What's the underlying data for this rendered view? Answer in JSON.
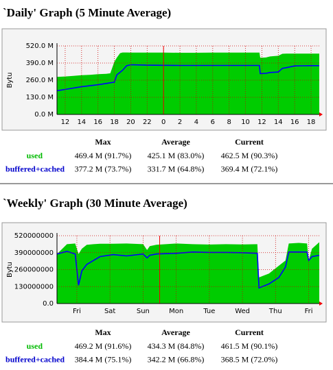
{
  "chart_data": [
    {
      "type": "area",
      "title": "`Daily' Graph (5 Minute Average)",
      "y_label": "Bytu",
      "x": [
        11,
        12,
        13,
        14,
        15,
        16,
        17,
        17.5,
        18,
        18.3,
        18.7,
        19,
        19.5,
        20,
        22,
        24,
        26,
        28,
        30,
        32,
        34,
        35.7,
        35.8,
        36.5,
        37,
        38,
        38.5,
        39,
        40,
        41,
        42,
        43
      ],
      "series": [
        {
          "name": "used",
          "color": "#00cc00",
          "style": "area",
          "values": [
            285,
            288,
            292,
            298,
            300,
            305,
            308,
            312,
            400,
            430,
            465,
            470,
            470,
            469,
            469,
            469,
            468,
            468,
            469,
            469,
            469,
            469,
            430,
            432,
            440,
            445,
            460,
            462,
            462,
            462,
            462,
            462
          ]
        },
        {
          "name": "buffered+cached",
          "color": "#0000ff",
          "style": "line",
          "values": [
            180,
            190,
            200,
            210,
            218,
            225,
            235,
            240,
            245,
            300,
            320,
            335,
            370,
            377,
            374,
            373,
            372,
            372,
            372,
            372,
            372,
            372,
            310,
            312,
            318,
            322,
            350,
            355,
            368,
            369,
            370,
            370
          ]
        }
      ],
      "xlim": [
        11,
        43
      ],
      "xticks": [
        {
          "value": 12,
          "label": "12"
        },
        {
          "value": 14,
          "label": "14"
        },
        {
          "value": 16,
          "label": "16"
        },
        {
          "value": 18,
          "label": "18"
        },
        {
          "value": 20,
          "label": "20"
        },
        {
          "value": 22,
          "label": "22"
        },
        {
          "value": 24,
          "label": "0"
        },
        {
          "value": 26,
          "label": "2"
        },
        {
          "value": 28,
          "label": "4"
        },
        {
          "value": 30,
          "label": "6"
        },
        {
          "value": 32,
          "label": "8"
        },
        {
          "value": 34,
          "label": "10"
        },
        {
          "value": 36,
          "label": "12"
        },
        {
          "value": 38,
          "label": "14"
        },
        {
          "value": 40,
          "label": "16"
        },
        {
          "value": 42,
          "label": "18"
        }
      ],
      "marker_x": 24,
      "ylim": [
        0,
        520
      ],
      "yticks": [
        {
          "value": 0,
          "label": "0.0 M"
        },
        {
          "value": 130,
          "label": "130.0 M"
        },
        {
          "value": 260,
          "label": "260.0 M"
        },
        {
          "value": 390,
          "label": "390.0 M"
        },
        {
          "value": 520,
          "label": "520.0 M"
        }
      ],
      "grid": true,
      "stats": {
        "headers": [
          "Max",
          "Average",
          "Current"
        ],
        "rows": [
          [
            "469.4 M (91.7%)",
            "425.1 M (83.0%)",
            "462.5 M (90.3%)"
          ],
          [
            "377.2 M (73.7%)",
            "331.7 M (64.8%)",
            "369.4 M (72.1%)"
          ]
        ]
      }
    },
    {
      "type": "area",
      "title": "`Weekly' Graph (30 Minute Average)",
      "y_label": "Bytu",
      "x": [
        -0.1,
        0.2,
        0.45,
        0.55,
        0.65,
        0.8,
        1.0,
        1.2,
        1.6,
        2.0,
        2.5,
        2.62,
        2.7,
        2.9,
        3.5,
        4.0,
        4.5,
        5.0,
        5.5,
        5.95,
        6.0,
        6.3,
        6.6,
        6.8,
        6.9,
        7.2,
        7.45,
        7.5,
        7.6,
        7.82
      ],
      "series": [
        {
          "name": "used",
          "color": "#00cc00",
          "style": "area",
          "values": [
            380000000,
            455000000,
            460000000,
            380000000,
            420000000,
            450000000,
            455000000,
            458000000,
            458000000,
            460000000,
            455000000,
            410000000,
            440000000,
            450000000,
            460000000,
            455000000,
            452000000,
            455000000,
            453000000,
            455000000,
            200000000,
            230000000,
            290000000,
            330000000,
            460000000,
            465000000,
            460000000,
            330000000,
            420000000,
            470000000
          ]
        },
        {
          "name": "buffered+cached",
          "color": "#0000ff",
          "style": "line",
          "values": [
            380000000,
            400000000,
            380000000,
            140000000,
            250000000,
            300000000,
            330000000,
            360000000,
            375000000,
            365000000,
            380000000,
            350000000,
            370000000,
            380000000,
            385000000,
            395000000,
            392000000,
            392000000,
            390000000,
            385000000,
            120000000,
            150000000,
            200000000,
            280000000,
            395000000,
            395000000,
            395000000,
            330000000,
            360000000,
            370000000
          ]
        }
      ],
      "xlim": [
        -0.1,
        7.82
      ],
      "xticks": [
        {
          "value": 0.5,
          "label": "Fri"
        },
        {
          "value": 1.5,
          "label": "Sat"
        },
        {
          "value": 2.5,
          "label": "Sun"
        },
        {
          "value": 3.5,
          "label": "Mon"
        },
        {
          "value": 4.5,
          "label": "Tue"
        },
        {
          "value": 5.5,
          "label": "Wed"
        },
        {
          "value": 6.5,
          "label": "Thu"
        },
        {
          "value": 7.5,
          "label": "Fri"
        }
      ],
      "marker_x": 3,
      "ylim": [
        0,
        520000000
      ],
      "yticks": [
        {
          "value": 0,
          "label": "0.0"
        },
        130000000,
        260000000,
        390000000,
        520000000
      ],
      "grid": true,
      "stats": {
        "headers": [
          "Max",
          "Average",
          "Current"
        ],
        "rows": [
          [
            "469.2 M (91.6%)",
            "434.3 M (84.8%)",
            "461.5 M (90.1%)"
          ],
          [
            "384.4 M (75.1%)",
            "342.2 M (66.8%)",
            "368.5 M (72.0%)"
          ]
        ]
      }
    }
  ]
}
